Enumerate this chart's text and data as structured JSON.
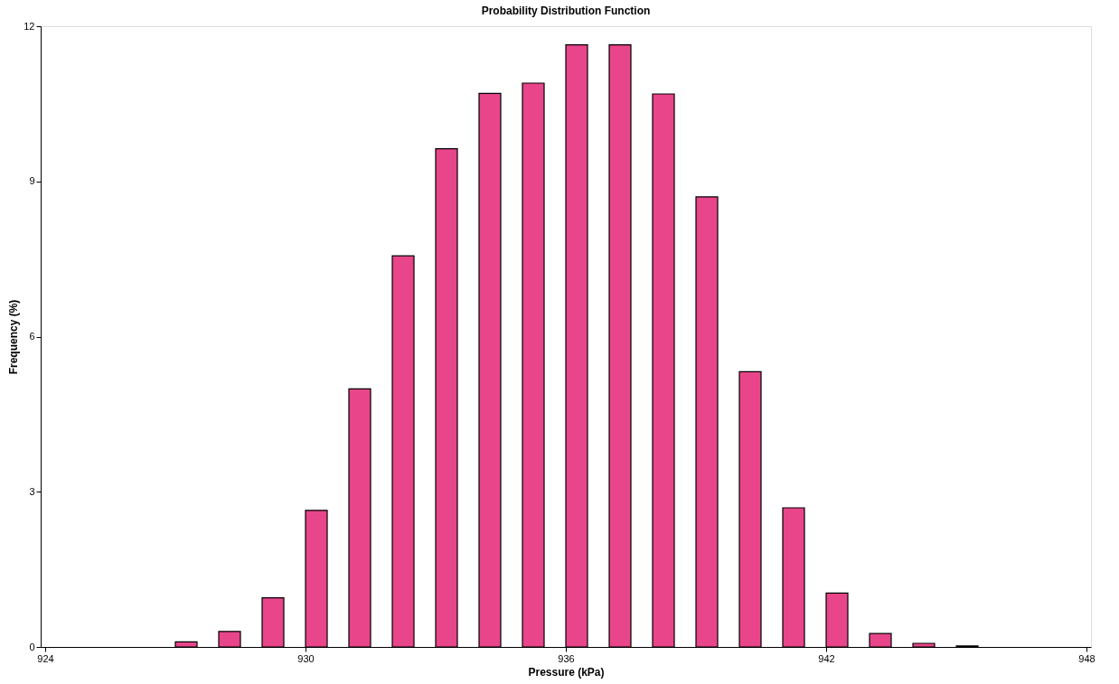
{
  "chart_data": {
    "type": "bar",
    "title": "Probability Distribution Function",
    "xlabel": "Pressure (kPa)",
    "ylabel": "Frequency (%)",
    "x": [
      927.25,
      928.25,
      929.25,
      930.25,
      931.25,
      932.25,
      933.25,
      934.25,
      935.25,
      936.25,
      937.25,
      938.25,
      939.25,
      940.25,
      941.25,
      942.25,
      943.25,
      944.25,
      945.25
    ],
    "values": [
      0.1,
      0.3,
      0.95,
      2.64,
      4.99,
      7.56,
      9.63,
      10.7,
      10.9,
      11.64,
      11.64,
      10.69,
      8.7,
      5.32,
      2.69,
      1.04,
      0.26,
      0.07,
      0.02
    ],
    "color": "#e8458a",
    "xlim": [
      924,
      948
    ],
    "xticks": [
      924,
      930,
      936,
      942,
      948
    ],
    "ylim": [
      0,
      12
    ],
    "yticks": [
      0,
      3,
      6,
      9,
      12
    ],
    "grid": false
  }
}
